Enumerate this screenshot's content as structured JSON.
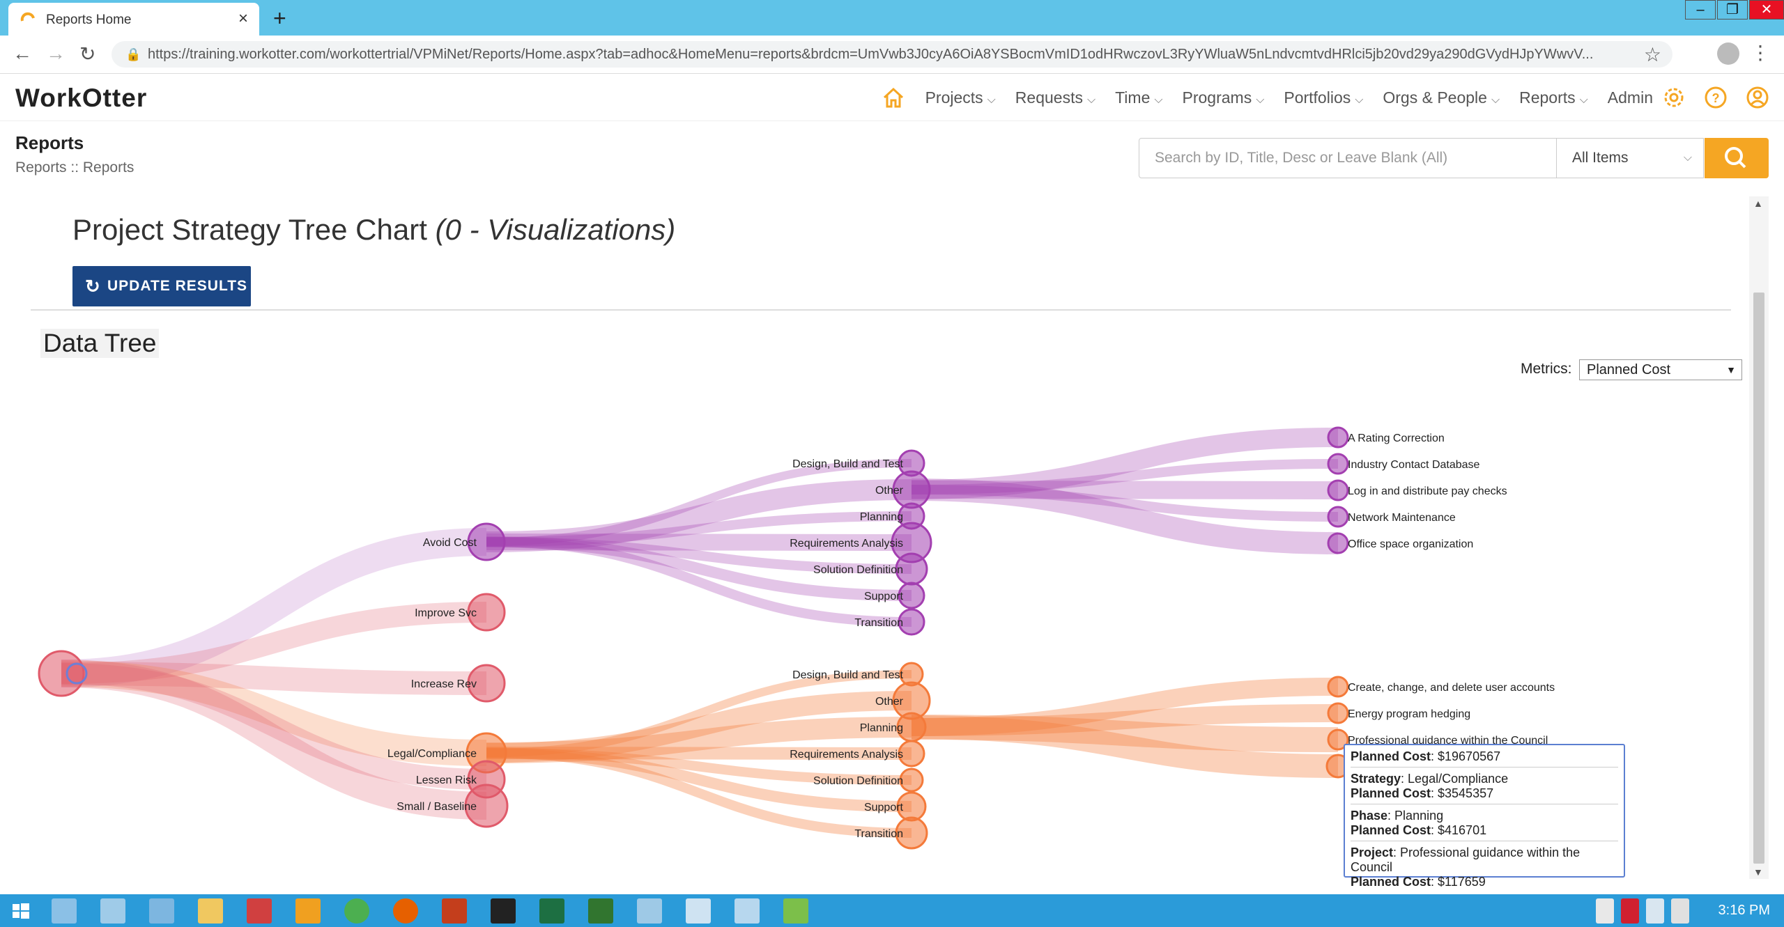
{
  "browser": {
    "tab_title": "Reports Home",
    "tab_close": "×",
    "new_tab": "+",
    "url": "https://training.workotter.com/workottertrial/VPMiNet/Reports/Home.aspx?tab=adhoc&HomeMenu=reports&brdcm=UmVwb3J0cyA6OiA8YSBocmVmID1odHRwczovL3RyYWluaW5nLndvcmtvdHRlci5jb20vd29ya290dGVydHJpYWwvV..."
  },
  "app": {
    "logo": "WorkOtter",
    "nav": [
      {
        "label": "Projects"
      },
      {
        "label": "Requests"
      },
      {
        "label": "Time"
      },
      {
        "label": "Programs"
      },
      {
        "label": "Portfolios"
      },
      {
        "label": "Orgs & People"
      },
      {
        "label": "Reports"
      },
      {
        "label": "Admin"
      }
    ]
  },
  "page": {
    "title": "Reports",
    "breadcrumb": "Reports :: Reports",
    "search_placeholder": "Search by ID, Title, Desc or Leave Blank (All)",
    "filter_value": "All Items"
  },
  "report": {
    "title": "Project Strategy Tree Chart",
    "title_suffix": "(0 - Visualizations)",
    "update_button": "UPDATE RESULTS",
    "section_title": "Data Tree",
    "metrics_label": "Metrics:",
    "metrics_value": "Planned Cost"
  },
  "tree": {
    "strategies": [
      "Avoid Cost",
      "Improve Svc",
      "Increase Rev",
      "Legal/Compliance",
      "Lessen Risk",
      "Small / Baseline"
    ],
    "phases_top": [
      "Design, Build and Test",
      "Other",
      "Planning",
      "Requirements Analysis",
      "Solution Definition",
      "Support",
      "Transition"
    ],
    "phases_bottom": [
      "Design, Build and Test",
      "Other",
      "Planning",
      "Requirements Analysis",
      "Solution Definition",
      "Support",
      "Transition"
    ],
    "projects_top": [
      "A Rating Correction",
      "Industry Contact Database",
      "Log in and distribute pay checks",
      "Network Maintenance",
      "Office space organization"
    ],
    "projects_bottom": [
      "Create, change, and delete user accounts",
      "Energy program hedging",
      "Professional guidance within the Council"
    ],
    "colors": {
      "purple": "#a33fb0",
      "orange": "#f47a3a",
      "red": "#e05a6a"
    }
  },
  "tooltip": {
    "total_label": "Planned Cost",
    "total_value": ": $19670567",
    "strategy_label": "Strategy",
    "strategy_value": ": Legal/Compliance",
    "strategy_cost_label": "Planned Cost",
    "strategy_cost_value": ": $3545357",
    "phase_label": "Phase",
    "phase_value": ": Planning",
    "phase_cost_label": "Planned Cost",
    "phase_cost_value": ": $416701",
    "project_label": "Project",
    "project_value": ": Professional guidance within the Council",
    "project_cost_label": "Planned Cost",
    "project_cost_value": ": $117659"
  },
  "taskbar": {
    "time": "3:16 PM"
  }
}
